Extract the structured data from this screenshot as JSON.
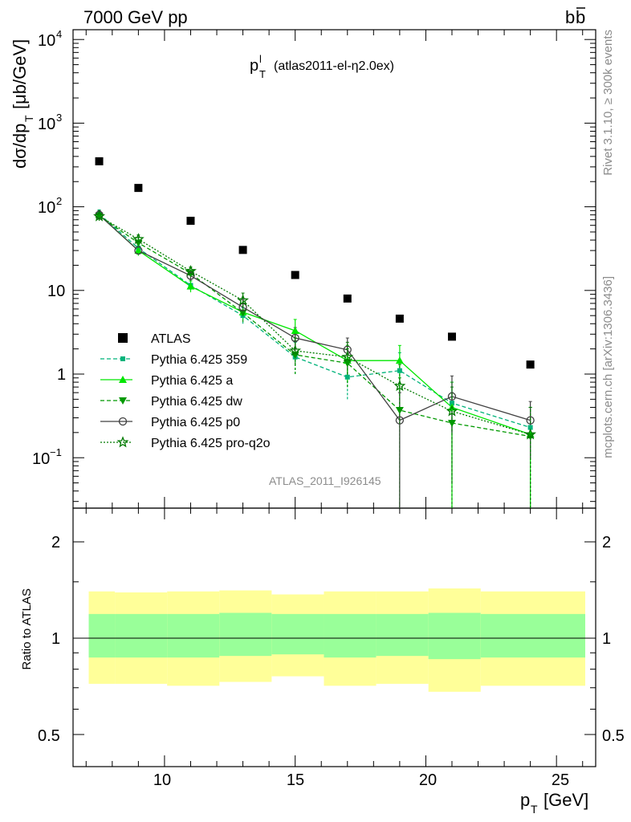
{
  "header": {
    "beam": "7000 GeV pp",
    "process_b": "b",
    "process_bbar": "b",
    "plot_title_main": "p",
    "plot_title_sup": "l",
    "plot_title_sub": "T",
    "plot_title_rest": "(atlas2011-el-η2.0ex)",
    "side_rivet": "Rivet 3.1.10, ≥ 300k events",
    "side_mcplots": "mcplots.cern.ch [arXiv:1306.3436]",
    "analysis_id": "ATLAS_2011_I926145"
  },
  "axes": {
    "ylabel_main": "dσ/dp",
    "ylabel_main_sub": "T",
    "ylabel_main_unit": "[μb/GeV]",
    "ylabel_ratio": "Ratio to ATLAS",
    "xlabel": "p",
    "xlabel_sub": "T",
    "xlabel_unit": "[GeV]",
    "main_yticks": [
      "10",
      "4",
      "10",
      "3",
      "10",
      "2",
      "10",
      "1",
      "10",
      "−1"
    ],
    "ratio_yticks": [
      "2",
      "1",
      "0.5"
    ],
    "xticks": [
      "10",
      "15",
      "20",
      "25"
    ]
  },
  "colors": {
    "atlas": "#000000",
    "p359": "#00b37a",
    "pa": "#00e600",
    "pdw": "#009900",
    "pp0": "#404040",
    "ppro": "#007a00",
    "band_inner": "#99ff99",
    "band_outer": "#ffff99"
  },
  "chart_data": {
    "type": "scatter",
    "x_scale": "linear",
    "y_scale": "log",
    "xlim": [
      6.5,
      26.5
    ],
    "ylim": [
      0.025,
      15000
    ],
    "ratio_ylim": [
      0.4,
      2.4
    ],
    "ratio_yscale": "log",
    "legend_position": "lower-left",
    "series": [
      {
        "name": "ATLAS",
        "key": "atlas",
        "marker": "square",
        "line": "none",
        "x": [
          7.5,
          9,
          11,
          13,
          15,
          17,
          19,
          21,
          24
        ],
        "y": [
          350,
          168,
          68,
          30.5,
          15.3,
          8.0,
          4.6,
          2.8,
          1.3
        ]
      },
      {
        "name": "Pythia 6.425 359",
        "key": "p359",
        "marker": "smallsquare",
        "line": "dashed",
        "x": [
          7.5,
          9,
          11,
          13,
          15,
          17,
          19,
          21,
          24
        ],
        "y": [
          82,
          32,
          11.5,
          5.0,
          1.6,
          0.92,
          1.1,
          0.45,
          0.23
        ],
        "err_lo": [
          72,
          28,
          10,
          4.0,
          1.0,
          0.5,
          0.5,
          0.2,
          0.1
        ],
        "err_hi": [
          92,
          36,
          13,
          6.2,
          2.4,
          1.5,
          1.8,
          0.8,
          0.4
        ]
      },
      {
        "name": "Pythia 6.425 a",
        "key": "pa",
        "marker": "triangle-up",
        "line": "solid",
        "x": [
          7.5,
          9,
          11,
          13,
          15,
          17,
          19,
          21,
          24
        ],
        "y": [
          80,
          30,
          11.2,
          5.5,
          3.3,
          1.45,
          1.45,
          0.4,
          0.19
        ],
        "err_lo": [
          70,
          26,
          9.5,
          4.5,
          2.2,
          0.8,
          0.001,
          0.001,
          0.001
        ],
        "err_hi": [
          90,
          34,
          13,
          7.0,
          4.5,
          2.2,
          2.2,
          0.8,
          0.4
        ]
      },
      {
        "name": "Pythia 6.425 dw",
        "key": "pdw",
        "marker": "triangle-down",
        "line": "dashed",
        "x": [
          7.5,
          9,
          11,
          13,
          15,
          17,
          19,
          21,
          24
        ],
        "y": [
          78,
          37,
          16,
          5.4,
          1.7,
          1.35,
          0.37,
          0.26,
          0.18
        ],
        "err_lo": [
          68,
          32,
          13,
          4.2,
          1.0,
          0.7,
          0.001,
          0.001,
          0.001
        ],
        "err_hi": [
          88,
          43,
          19,
          7.0,
          2.5,
          2.0,
          0.9,
          0.6,
          0.4
        ]
      },
      {
        "name": "Pythia 6.425 p0",
        "key": "pp0",
        "marker": "circle-open",
        "line": "solid",
        "x": [
          7.5,
          9,
          11,
          13,
          15,
          17,
          19,
          21,
          24
        ],
        "y": [
          80,
          30,
          15,
          6.3,
          2.7,
          1.95,
          0.28,
          0.54,
          0.28
        ],
        "err_lo": [
          70,
          27,
          13,
          5.0,
          1.9,
          1.2,
          0.001,
          0.2,
          0.1
        ],
        "err_hi": [
          90,
          34,
          17,
          7.8,
          3.6,
          2.7,
          0.6,
          0.95,
          0.47
        ]
      },
      {
        "name": "Pythia 6.425 pro-q2o",
        "key": "ppro",
        "marker": "star-open",
        "line": "dotted",
        "x": [
          7.5,
          9,
          11,
          13,
          15,
          17,
          19,
          21,
          24
        ],
        "y": [
          77,
          41,
          17,
          7.6,
          1.9,
          1.6,
          0.72,
          0.36,
          0.19
        ],
        "err_lo": [
          68,
          37,
          15,
          6.3,
          1.3,
          0.9,
          0.25,
          0.05,
          0.001
        ],
        "err_hi": [
          86,
          46,
          19,
          9.3,
          2.7,
          2.4,
          1.3,
          0.7,
          0.4
        ]
      }
    ],
    "ratio_bands": {
      "x_edges": [
        7,
        8,
        10,
        12,
        14,
        16,
        18,
        20,
        22,
        26
      ],
      "outer_lo": [
        0.72,
        0.72,
        0.71,
        0.73,
        0.76,
        0.71,
        0.72,
        0.68,
        0.71
      ],
      "outer_hi": [
        1.4,
        1.39,
        1.4,
        1.41,
        1.37,
        1.4,
        1.4,
        1.43,
        1.4
      ],
      "inner_lo": [
        0.87,
        0.87,
        0.87,
        0.88,
        0.89,
        0.87,
        0.88,
        0.86,
        0.87
      ],
      "inner_hi": [
        1.19,
        1.19,
        1.19,
        1.2,
        1.19,
        1.19,
        1.19,
        1.2,
        1.19
      ]
    }
  }
}
